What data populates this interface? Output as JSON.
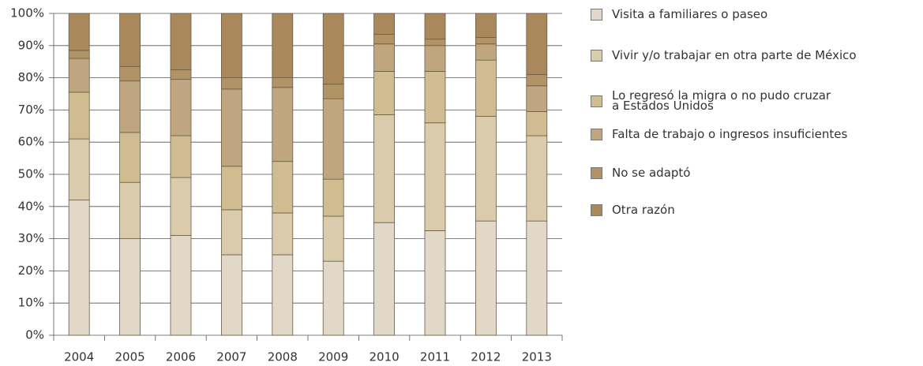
{
  "chart_data": {
    "type": "stacked_bar",
    "categories": [
      "2004",
      "2005",
      "2006",
      "2007",
      "2008",
      "2009",
      "2010",
      "2011",
      "2012",
      "2013"
    ],
    "series": [
      {
        "name": "Visita a familiares o paseo",
        "color": "#e2d8c8",
        "values": [
          42,
          30,
          31,
          25,
          25,
          23,
          35,
          32.5,
          35.5,
          35.5
        ]
      },
      {
        "name": "Vivir y/o trabajar en otra parte de México",
        "color": "#d9cbac",
        "values": [
          19,
          17.5,
          18,
          14,
          13,
          14,
          33.5,
          33.5,
          32.5,
          26.5
        ]
      },
      {
        "name": "Lo regresó la migra o no pudo cruzar\na Estados Unidos",
        "color": "#cfbd91",
        "values": [
          14.5,
          15.5,
          13,
          13.5,
          16,
          11.5,
          13.5,
          16,
          17.5,
          7.5
        ]
      },
      {
        "name": "Falta de trabajo o ingresos insuficientes",
        "color": "#c0a680",
        "values": [
          10.5,
          16,
          17.5,
          24,
          23,
          25,
          8.5,
          8,
          5,
          8
        ]
      },
      {
        "name": "No se adaptó",
        "color": "#b29366",
        "values": [
          2.5,
          4.5,
          3,
          3.5,
          3,
          4.5,
          3,
          2,
          2,
          3.5
        ]
      },
      {
        "name": "Otra razón",
        "color": "#a9885b",
        "values": [
          11.5,
          16.5,
          17.5,
          20,
          20,
          22,
          6.5,
          8,
          7.5,
          19
        ]
      }
    ],
    "ylim": [
      0,
      100
    ],
    "yticks": [
      {
        "value": 0,
        "label": "0%"
      },
      {
        "value": 10,
        "label": "10%"
      },
      {
        "value": 20,
        "label": "20%"
      },
      {
        "value": 30,
        "label": "30%"
      },
      {
        "value": 40,
        "label": "40%"
      },
      {
        "value": 50,
        "label": "50%"
      },
      {
        "value": 60,
        "label": "60%"
      },
      {
        "value": 70,
        "label": "70%"
      },
      {
        "value": 80,
        "label": "80%"
      },
      {
        "value": 90,
        "label": "90%"
      },
      {
        "value": 100,
        "label": "100%"
      }
    ],
    "grid": true,
    "legend": "right"
  }
}
